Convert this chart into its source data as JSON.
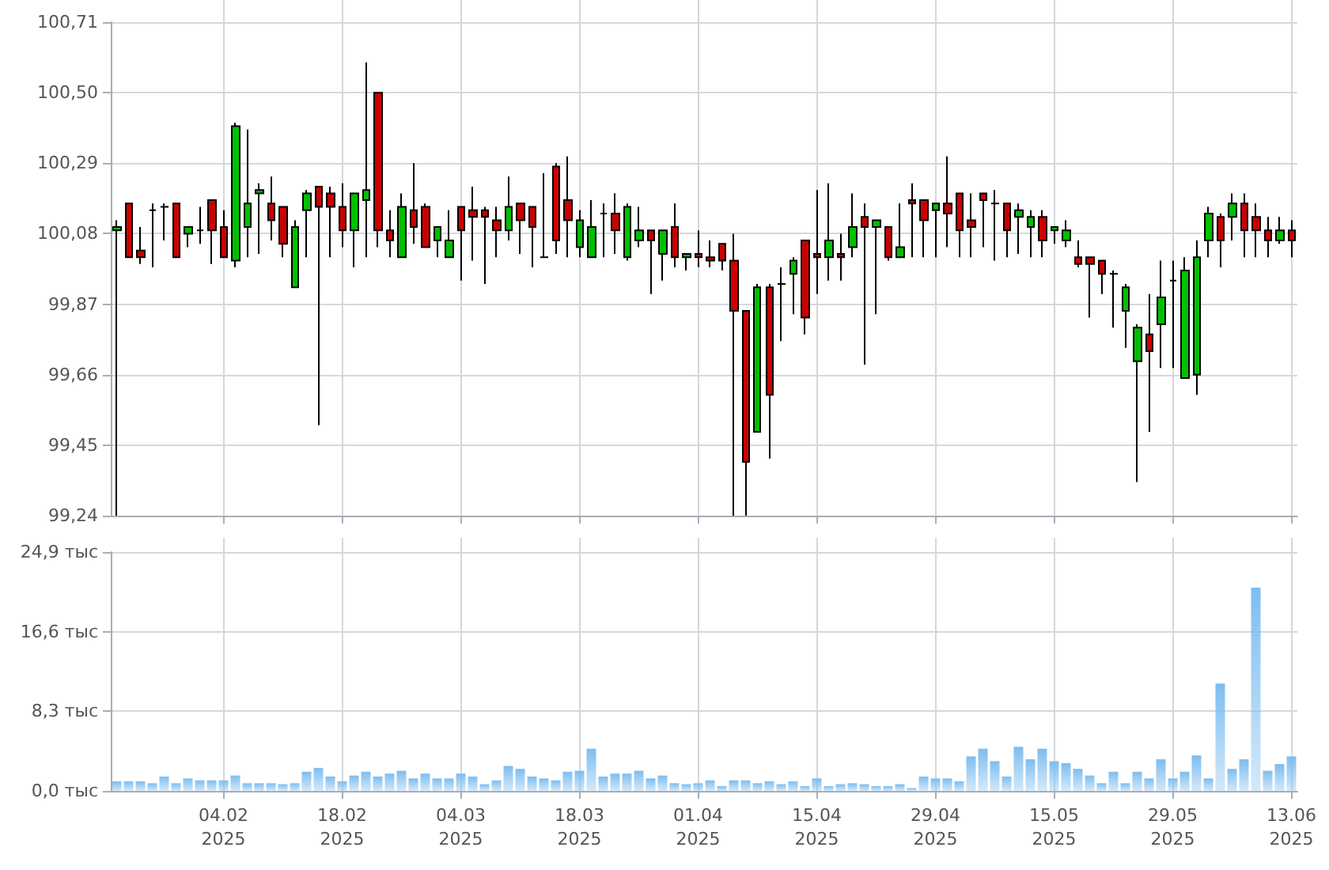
{
  "chart_data": [
    {
      "type": "candlestick",
      "categories": [
        null,
        null,
        null,
        null,
        null,
        null,
        null,
        null,
        null,
        null,
        null,
        null,
        null,
        null,
        null,
        null,
        null,
        null,
        null,
        null,
        null,
        null,
        null,
        null,
        null,
        null,
        null,
        null,
        null,
        null,
        null,
        null,
        null,
        null,
        null,
        null,
        null,
        null,
        null,
        null,
        null,
        null,
        null,
        null,
        null,
        null,
        null,
        null,
        null,
        null,
        null,
        null,
        null,
        null,
        null,
        null,
        null,
        null,
        null,
        null,
        null,
        null,
        null,
        null,
        null,
        null,
        null,
        null,
        null,
        null,
        null,
        null,
        null,
        null,
        null,
        null,
        null,
        null,
        null,
        null,
        null,
        null,
        null,
        null,
        null,
        null,
        null,
        null,
        null,
        null,
        null,
        null,
        null,
        null,
        null,
        null,
        null,
        null,
        null,
        null
      ],
      "ohlc": [
        [
          100.09,
          100.12,
          99.24,
          100.1
        ],
        [
          100.17,
          100.17,
          100.01,
          100.01
        ],
        [
          100.03,
          100.1,
          99.99,
          100.01
        ],
        [
          100.15,
          100.17,
          99.98,
          100.15
        ],
        [
          100.16,
          100.17,
          100.06,
          100.16
        ],
        [
          100.17,
          100.17,
          100.01,
          100.01
        ],
        [
          100.08,
          100.1,
          100.04,
          100.1
        ],
        [
          100.09,
          100.16,
          100.05,
          100.09
        ],
        [
          100.18,
          100.18,
          99.99,
          100.09
        ],
        [
          100.1,
          100.15,
          100.01,
          100.01
        ],
        [
          100.0,
          100.41,
          99.98,
          100.4
        ],
        [
          100.1,
          100.39,
          100.01,
          100.17
        ],
        [
          100.2,
          100.23,
          100.02,
          100.21
        ],
        [
          100.17,
          100.25,
          100.06,
          100.12
        ],
        [
          100.16,
          100.16,
          100.01,
          100.05
        ],
        [
          99.92,
          100.12,
          99.92,
          100.1
        ],
        [
          100.15,
          100.21,
          100.01,
          100.2
        ],
        [
          100.22,
          100.22,
          99.51,
          100.16
        ],
        [
          100.2,
          100.22,
          100.01,
          100.16
        ],
        [
          100.16,
          100.23,
          100.04,
          100.09
        ],
        [
          100.09,
          100.2,
          99.98,
          100.2
        ],
        [
          100.18,
          100.59,
          100.01,
          100.21
        ],
        [
          100.5,
          100.5,
          100.04,
          100.09
        ],
        [
          100.09,
          100.15,
          100.01,
          100.06
        ],
        [
          100.01,
          100.2,
          100.01,
          100.16
        ],
        [
          100.15,
          100.29,
          100.05,
          100.1
        ],
        [
          100.16,
          100.17,
          100.04,
          100.04
        ],
        [
          100.06,
          100.1,
          100.01,
          100.1
        ],
        [
          100.01,
          100.15,
          100.01,
          100.06
        ],
        [
          100.16,
          100.16,
          99.94,
          100.09
        ],
        [
          100.15,
          100.22,
          100.0,
          100.13
        ],
        [
          100.15,
          100.16,
          99.93,
          100.13
        ],
        [
          100.12,
          100.16,
          100.01,
          100.09
        ],
        [
          100.09,
          100.25,
          100.06,
          100.16
        ],
        [
          100.17,
          100.17,
          100.02,
          100.12
        ],
        [
          100.16,
          100.16,
          99.98,
          100.1
        ],
        [
          100.01,
          100.26,
          100.01,
          100.01
        ],
        [
          100.28,
          100.29,
          100.02,
          100.06
        ],
        [
          100.18,
          100.31,
          100.01,
          100.12
        ],
        [
          100.04,
          100.15,
          100.01,
          100.12
        ],
        [
          100.01,
          100.18,
          100.01,
          100.1
        ],
        [
          100.14,
          100.17,
          100.01,
          100.14
        ],
        [
          100.14,
          100.2,
          100.02,
          100.09
        ],
        [
          100.01,
          100.17,
          100.0,
          100.16
        ],
        [
          100.06,
          100.16,
          100.04,
          100.09
        ],
        [
          100.09,
          100.09,
          99.9,
          100.06
        ],
        [
          100.02,
          100.09,
          99.94,
          100.09
        ],
        [
          100.1,
          100.17,
          99.98,
          100.01
        ],
        [
          100.01,
          100.02,
          99.97,
          100.02
        ],
        [
          100.02,
          100.09,
          99.98,
          100.01
        ],
        [
          100.01,
          100.06,
          99.98,
          100.0
        ],
        [
          100.05,
          100.05,
          99.97,
          100.0
        ],
        [
          100.0,
          100.08,
          99.24,
          99.85
        ],
        [
          99.85,
          99.85,
          99.24,
          99.4
        ],
        [
          99.49,
          99.93,
          99.49,
          99.92
        ],
        [
          99.92,
          99.93,
          99.41,
          99.6
        ],
        [
          99.93,
          99.98,
          99.76,
          99.93
        ],
        [
          99.96,
          100.01,
          99.84,
          100.0
        ],
        [
          100.06,
          100.06,
          99.78,
          99.83
        ],
        [
          100.02,
          100.21,
          99.9,
          100.01
        ],
        [
          100.01,
          100.23,
          99.94,
          100.06
        ],
        [
          100.02,
          100.08,
          99.94,
          100.01
        ],
        [
          100.04,
          100.2,
          100.01,
          100.1
        ],
        [
          100.13,
          100.17,
          99.69,
          100.1
        ],
        [
          100.1,
          100.12,
          99.84,
          100.12
        ],
        [
          100.1,
          100.1,
          100.0,
          100.01
        ],
        [
          100.01,
          100.17,
          100.01,
          100.04
        ],
        [
          100.18,
          100.23,
          100.01,
          100.17
        ],
        [
          100.18,
          100.18,
          100.01,
          100.12
        ],
        [
          100.15,
          100.17,
          100.01,
          100.17
        ],
        [
          100.17,
          100.31,
          100.04,
          100.14
        ],
        [
          100.2,
          100.2,
          100.01,
          100.09
        ],
        [
          100.12,
          100.2,
          100.01,
          100.1
        ],
        [
          100.2,
          100.2,
          100.04,
          100.18
        ],
        [
          100.17,
          100.21,
          100.0,
          100.17
        ],
        [
          100.17,
          100.17,
          100.01,
          100.09
        ],
        [
          100.13,
          100.17,
          100.02,
          100.15
        ],
        [
          100.1,
          100.15,
          100.01,
          100.13
        ],
        [
          100.13,
          100.15,
          100.01,
          100.06
        ],
        [
          100.09,
          100.1,
          100.05,
          100.1
        ],
        [
          100.06,
          100.12,
          100.04,
          100.09
        ],
        [
          100.01,
          100.06,
          99.98,
          99.99
        ],
        [
          100.01,
          100.01,
          99.83,
          99.99
        ],
        [
          100.0,
          100.0,
          99.9,
          99.96
        ],
        [
          99.96,
          99.97,
          99.8,
          99.96
        ],
        [
          99.85,
          99.93,
          99.74,
          99.92
        ],
        [
          99.7,
          99.81,
          99.34,
          99.8
        ],
        [
          99.78,
          99.9,
          99.49,
          99.73
        ],
        [
          99.81,
          100.0,
          99.68,
          99.89
        ],
        [
          99.94,
          100.0,
          99.68,
          99.94
        ],
        [
          99.65,
          100.01,
          99.65,
          99.97
        ],
        [
          99.66,
          100.06,
          99.6,
          100.01
        ],
        [
          100.06,
          100.16,
          100.01,
          100.14
        ],
        [
          100.13,
          100.14,
          99.98,
          100.06
        ],
        [
          100.13,
          100.2,
          100.06,
          100.17
        ],
        [
          100.17,
          100.2,
          100.01,
          100.09
        ],
        [
          100.13,
          100.17,
          100.01,
          100.09
        ],
        [
          100.09,
          100.13,
          100.01,
          100.06
        ],
        [
          100.06,
          100.13,
          100.05,
          100.09
        ],
        [
          100.09,
          100.12,
          100.01,
          100.06
        ]
      ],
      "colors": [
        "#00c000",
        "#cc0000",
        "#cc0000",
        "#000000",
        "#000000",
        "#cc0000",
        "#00c000",
        "#000000",
        "#cc0000",
        "#cc0000",
        "#00c000",
        "#00c000",
        "#00c000",
        "#cc0000",
        "#cc0000",
        "#00c000",
        "#00c000",
        "#cc0000",
        "#cc0000",
        "#cc0000",
        "#00c000",
        "#00c000",
        "#cc0000",
        "#cc0000",
        "#00c000",
        "#cc0000",
        "#cc0000",
        "#00c000",
        "#00c000",
        "#cc0000",
        "#cc0000",
        "#cc0000",
        "#cc0000",
        "#00c000",
        "#cc0000",
        "#cc0000",
        "#000000",
        "#cc0000",
        "#cc0000",
        "#00c000",
        "#00c000",
        "#000000",
        "#cc0000",
        "#00c000",
        "#00c000",
        "#cc0000",
        "#00c000",
        "#cc0000",
        "#00c000",
        "#cc0000",
        "#cc0000",
        "#cc0000",
        "#cc0000",
        "#cc0000",
        "#00c000",
        "#cc0000",
        "#000000",
        "#00c000",
        "#cc0000",
        "#cc0000",
        "#00c000",
        "#cc0000",
        "#00c000",
        "#cc0000",
        "#00c000",
        "#cc0000",
        "#00c000",
        "#cc0000",
        "#cc0000",
        "#00c000",
        "#cc0000",
        "#cc0000",
        "#cc0000",
        "#cc0000",
        "#000000",
        "#cc0000",
        "#00c000",
        "#00c000",
        "#cc0000",
        "#00c000",
        "#00c000",
        "#cc0000",
        "#cc0000",
        "#cc0000",
        "#000000",
        "#00c000",
        "#00c000",
        "#cc0000",
        "#00c000",
        "#000000",
        "#00c000",
        "#00c000",
        "#00c000",
        "#cc0000",
        "#00c000",
        "#cc0000",
        "#cc0000",
        "#cc0000",
        "#00c000",
        "#cc0000"
      ],
      "ylim": [
        99.24,
        100.71
      ],
      "yticks": [
        {
          "value": 99.24,
          "label": "99,24"
        },
        {
          "value": 99.45,
          "label": "99,45"
        },
        {
          "value": 99.66,
          "label": "99,66"
        },
        {
          "value": 99.87,
          "label": "99,87"
        },
        {
          "value": 100.08,
          "label": "100,08"
        },
        {
          "value": 100.29,
          "label": "100,29"
        },
        {
          "value": 100.5,
          "label": "100,50"
        },
        {
          "value": 100.71,
          "label": "100,71"
        }
      ],
      "grid": true,
      "tick_labels": "y"
    },
    {
      "type": "bar",
      "categories": [
        null,
        null,
        null,
        null,
        null,
        null,
        null,
        null,
        null,
        "04.02\n2025",
        null,
        null,
        null,
        null,
        null,
        null,
        null,
        null,
        null,
        "18.02\n2025",
        null,
        null,
        null,
        null,
        null,
        null,
        null,
        null,
        null,
        "04.03\n2025",
        null,
        null,
        null,
        null,
        null,
        null,
        null,
        null,
        null,
        "18.03\n2025",
        null,
        null,
        null,
        null,
        null,
        null,
        null,
        null,
        null,
        "01.04\n2025",
        null,
        null,
        null,
        null,
        null,
        null,
        null,
        null,
        null,
        "15.04\n2025",
        null,
        null,
        null,
        null,
        null,
        null,
        null,
        null,
        null,
        "29.04\n2025",
        null,
        null,
        null,
        null,
        null,
        null,
        null,
        null,
        null,
        "15.05\n2025",
        null,
        null,
        null,
        null,
        null,
        null,
        null,
        null,
        null,
        "29.05\n2025",
        null,
        null,
        null,
        null,
        null,
        null,
        null,
        null,
        null,
        "13.06\n2025"
      ],
      "values": [
        1.0,
        1.0,
        1.0,
        0.8,
        1.5,
        0.8,
        1.3,
        1.1,
        1.1,
        1.1,
        1.6,
        0.8,
        0.8,
        0.8,
        0.7,
        0.8,
        2.0,
        2.4,
        1.5,
        1.0,
        1.6,
        2.0,
        1.5,
        1.8,
        2.1,
        1.3,
        1.8,
        1.3,
        1.3,
        1.8,
        1.5,
        0.7,
        1.1,
        2.6,
        2.3,
        1.5,
        1.3,
        1.1,
        2.0,
        2.1,
        4.4,
        1.5,
        1.8,
        1.8,
        2.1,
        1.3,
        1.6,
        0.8,
        0.7,
        0.8,
        1.1,
        0.5,
        1.1,
        1.1,
        0.8,
        1.0,
        0.7,
        1.0,
        0.5,
        1.3,
        0.5,
        0.7,
        0.8,
        0.7,
        0.5,
        0.5,
        0.7,
        0.3,
        1.5,
        1.3,
        1.3,
        1.0,
        3.6,
        4.4,
        3.1,
        1.5,
        4.6,
        3.3,
        4.4,
        3.1,
        2.9,
        2.3,
        1.6,
        0.8,
        2.0,
        0.8,
        2.0,
        1.3,
        3.3,
        1.3,
        2.0,
        3.7,
        1.3,
        11.2,
        2.3,
        3.3,
        21.2,
        2.1,
        2.8,
        3.6
      ],
      "color": "#7dbdf0",
      "ylim": [
        0,
        24.9
      ],
      "yticks": [
        {
          "value": 0,
          "label": "0,0 тыс"
        },
        {
          "value": 8.3,
          "label": "8,3 тыс"
        },
        {
          "value": 16.6,
          "label": "16,6 тыс"
        },
        {
          "value": 24.9,
          "label": "24,9 тыс"
        }
      ],
      "grid": true
    }
  ]
}
